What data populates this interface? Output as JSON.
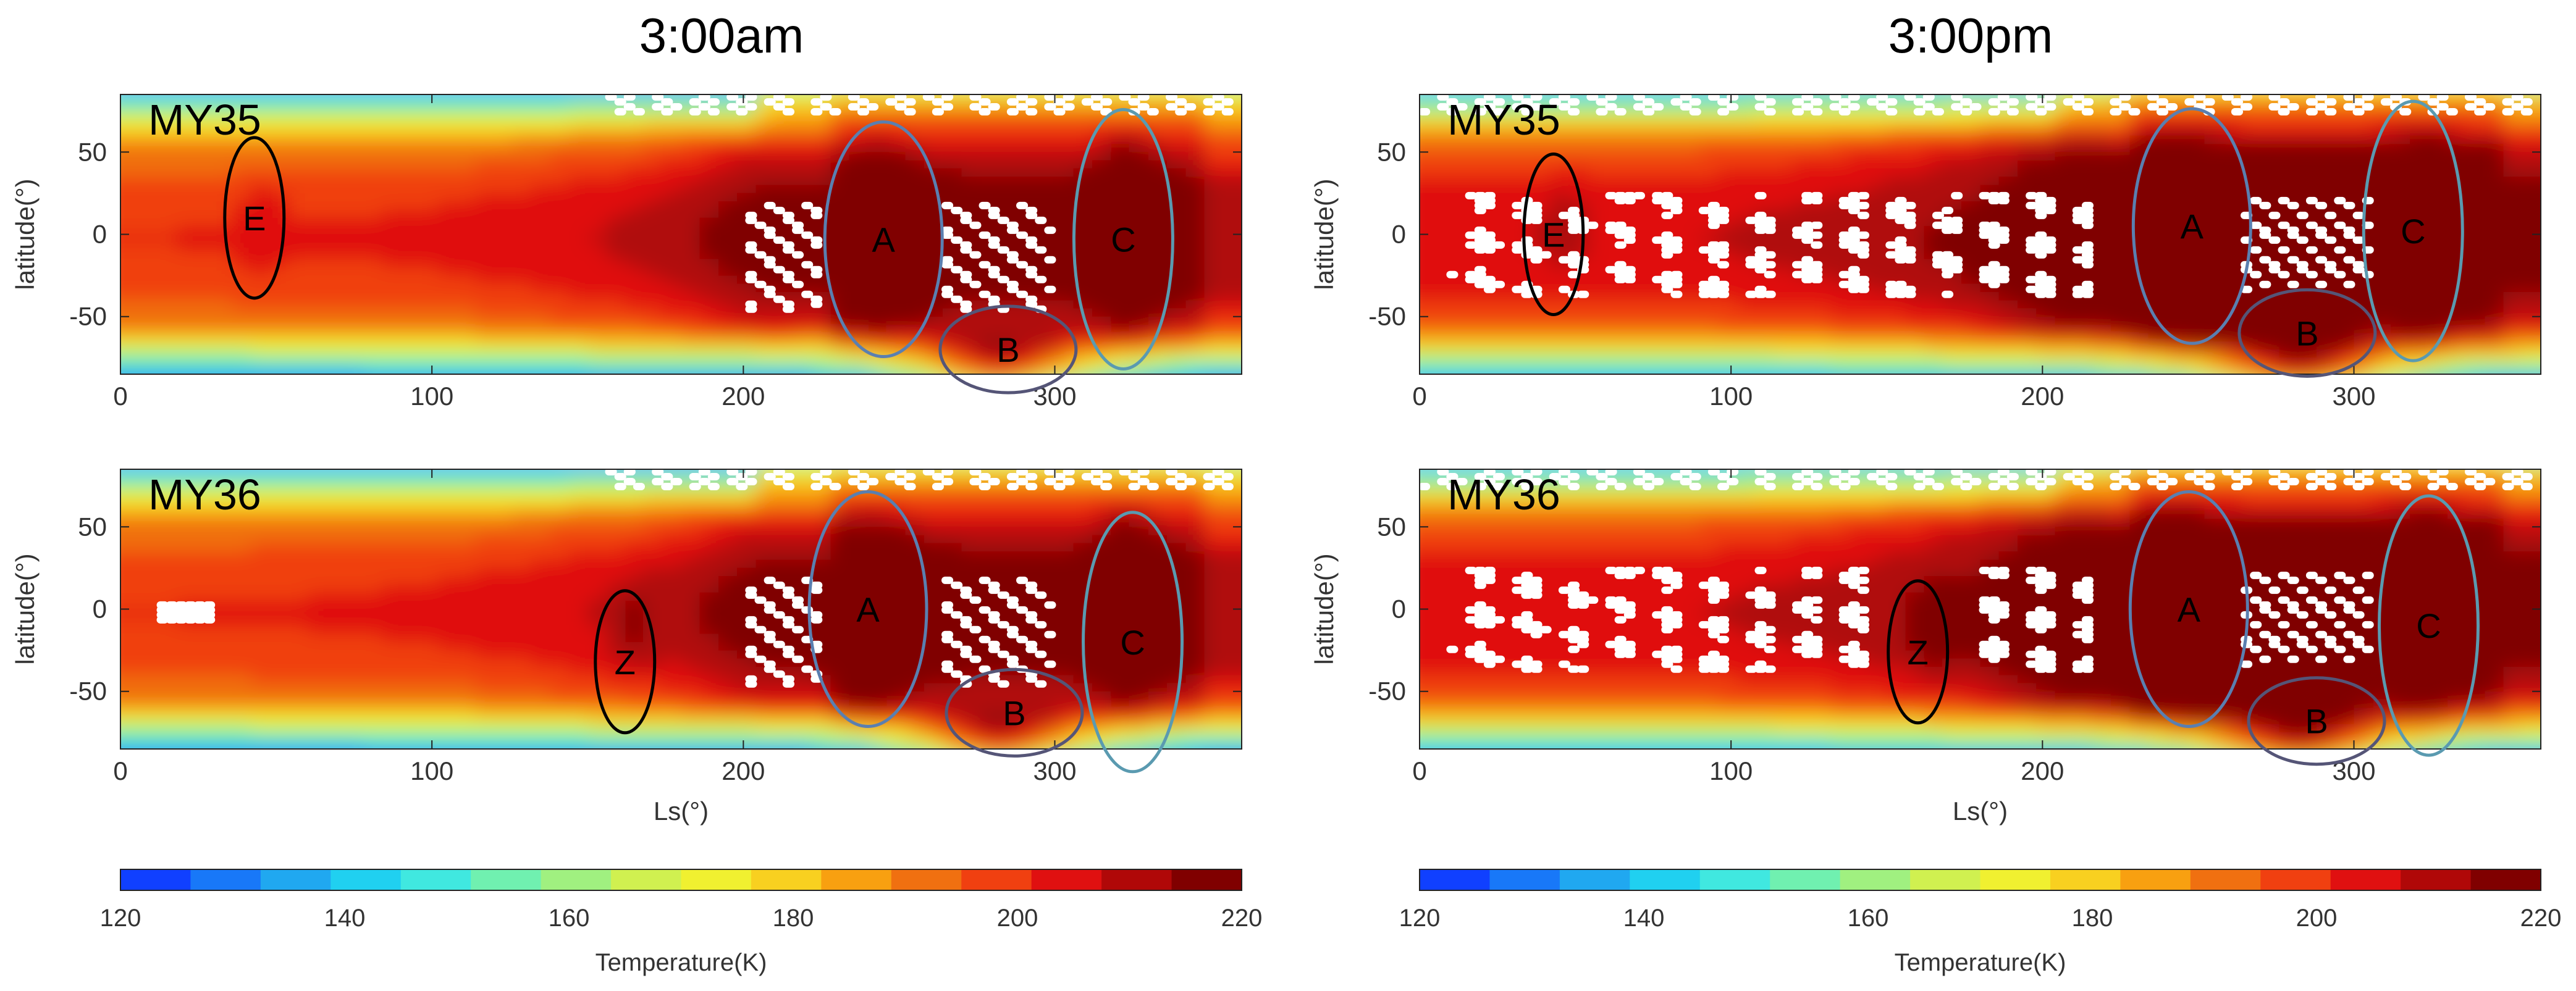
{
  "chart_data": {
    "type": "heatmap",
    "column_titles": [
      "3:00am",
      "3:00pm"
    ],
    "x_ticks": [
      0,
      100,
      200,
      300
    ],
    "y_ticks": [
      50,
      0,
      -50
    ],
    "xlabel": "Ls(°)",
    "ylabel": "latitude(°)",
    "xlim": [
      0,
      360
    ],
    "ylim": [
      -85,
      85
    ],
    "colorbar": {
      "label": "Temperature(K)",
      "min": 120,
      "max": 220,
      "step": 5,
      "ticks": [
        120,
        140,
        160,
        180,
        200,
        220
      ],
      "colors": [
        "#1040ff",
        "#1878f8",
        "#20a8f0",
        "#20d0f0",
        "#40e8e0",
        "#70f0b0",
        "#a0f080",
        "#d0f050",
        "#f0f030",
        "#f8d020",
        "#f8a010",
        "#f07010",
        "#f04010",
        "#e01010",
        "#b00808",
        "#800000"
      ]
    },
    "panels": [
      {
        "name": "3:00am-MY35",
        "label": "MY35",
        "time": "3:00am",
        "annotations": [
          {
            "text": "E",
            "ls": 43,
            "lat": 10,
            "stroke": "#000000"
          },
          {
            "text": "A",
            "ls": 245,
            "lat": -3,
            "stroke": "#5a7fb0"
          },
          {
            "text": "B",
            "ls": 285,
            "lat": -70,
            "stroke": "#555577"
          },
          {
            "text": "C",
            "ls": 322,
            "lat": -3,
            "stroke": "#5a9ab0"
          }
        ]
      },
      {
        "name": "3:00pm-MY35",
        "label": "MY35",
        "time": "3:00pm",
        "annotations": [
          {
            "text": "E",
            "ls": 43,
            "lat": 0,
            "stroke": "#000000"
          },
          {
            "text": "A",
            "ls": 248,
            "lat": 5,
            "stroke": "#5a7fb0"
          },
          {
            "text": "B",
            "ls": 285,
            "lat": -60,
            "stroke": "#555577"
          },
          {
            "text": "C",
            "ls": 319,
            "lat": 2,
            "stroke": "#5a9ab0"
          }
        ]
      },
      {
        "name": "3:00am-MY36",
        "label": "MY36",
        "time": "3:00am",
        "annotations": [
          {
            "text": "Z",
            "ls": 162,
            "lat": -32,
            "stroke": "#000000"
          },
          {
            "text": "A",
            "ls": 240,
            "lat": 0,
            "stroke": "#5a7fb0"
          },
          {
            "text": "B",
            "ls": 287,
            "lat": -63,
            "stroke": "#555577"
          },
          {
            "text": "C",
            "ls": 325,
            "lat": -20,
            "stroke": "#5a9ab0"
          }
        ]
      },
      {
        "name": "3:00pm-MY36",
        "label": "MY36",
        "time": "3:00pm",
        "annotations": [
          {
            "text": "Z",
            "ls": 160,
            "lat": -26,
            "stroke": "#000000"
          },
          {
            "text": "A",
            "ls": 247,
            "lat": 0,
            "stroke": "#5a7fb0"
          },
          {
            "text": "B",
            "ls": 288,
            "lat": -68,
            "stroke": "#555577"
          },
          {
            "text": "C",
            "ls": 324,
            "lat": -10,
            "stroke": "#5a9ab0"
          }
        ]
      }
    ]
  }
}
